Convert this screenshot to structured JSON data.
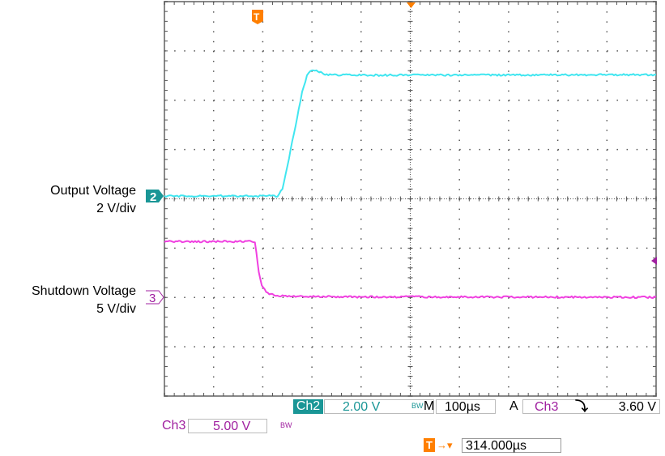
{
  "chart_data": {
    "type": "line",
    "title": "",
    "xlabel": "",
    "ylabel": "",
    "x_unit": "µs after trigger",
    "xlim": [
      -190,
      810
    ],
    "grid": true,
    "grid_divisions": {
      "horizontal": 10,
      "vertical": 8
    },
    "series": [
      {
        "name": "Output Voltage",
        "channel": "2",
        "scale": "2 V/div",
        "unit": "V",
        "color": "#40e6f0",
        "x": [
          -190,
          40,
          50,
          60,
          70,
          80,
          90,
          100,
          110,
          125,
          140,
          200,
          810
        ],
        "y": [
          0,
          0,
          0.3,
          1.2,
          2.2,
          3.2,
          4.2,
          4.9,
          5.12,
          5.05,
          4.92,
          4.9,
          4.92
        ]
      },
      {
        "name": "Shutdown Voltage",
        "channel": "3",
        "scale": "5 V/div",
        "unit": "V",
        "color": "#f040e0",
        "x": [
          -190,
          -6,
          -3,
          2,
          8,
          20,
          40,
          100,
          810
        ],
        "y": [
          5.65,
          5.65,
          4.5,
          2.5,
          1.2,
          0.4,
          0.15,
          0.05,
          0.0
        ]
      }
    ]
  },
  "labels": {
    "ch2_name": "Output Voltage",
    "ch2_scale": "2 V/div",
    "ch3_name": "Shutdown Voltage",
    "ch3_scale": "5 V/div",
    "ch2_marker": "2",
    "ch3_marker": "3",
    "trigger_marker": "T"
  },
  "status": {
    "ch2_label": "Ch2",
    "ch2_value": "2.00 V",
    "bw": "BW",
    "m_label": "M",
    "timebase": "100µs",
    "a_label": "A",
    "trig_source": "Ch3",
    "trig_slope": "⤵",
    "trig_level": "3.60 V",
    "ch3_label": "Ch3",
    "ch3_value": "5.00 V",
    "trig_pos_icon": "T",
    "trig_pos_arrow": "→▾",
    "trig_pos": "314.000µs"
  },
  "colors": {
    "ch2": "#40e6f0",
    "ch3": "#f040e0",
    "ch2_text": "#1a9696",
    "ch3_text": "#a020a0",
    "trigger": "#ff7f00"
  }
}
